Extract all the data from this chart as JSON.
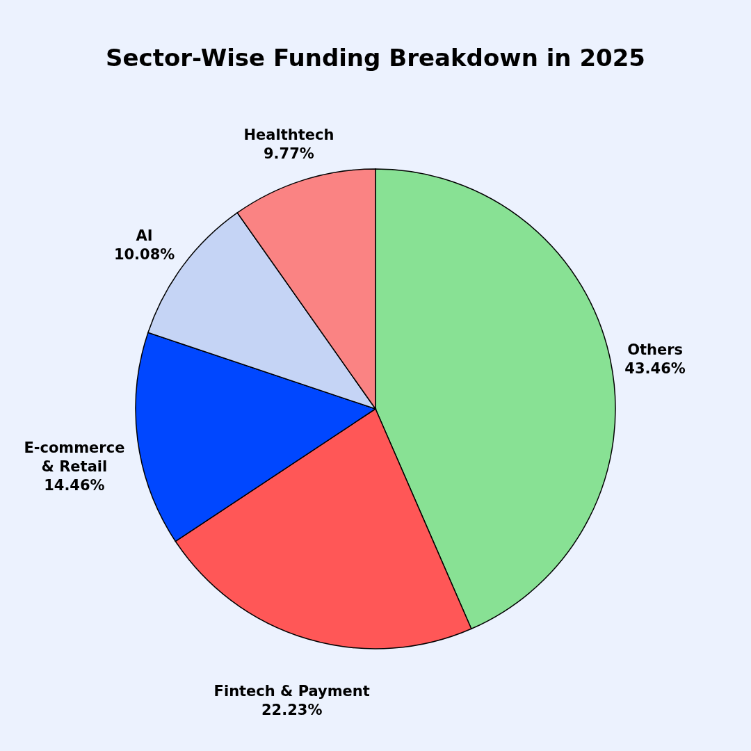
{
  "chart_data": {
    "type": "pie",
    "title": "Sector-Wise Funding Breakdown in 2025",
    "categories": [
      "Others",
      "Fintech & Payment",
      "E-commerce & Retail",
      "AI",
      "Healthtech"
    ],
    "values": [
      43.46,
      22.23,
      14.46,
      10.08,
      9.77
    ],
    "value_labels": [
      "43.46%",
      "22.23%",
      "14.46%",
      "10.08%",
      "9.77%"
    ],
    "colors": [
      "#88e194",
      "#ff5757",
      "#0047ff",
      "#c5d4f5",
      "#fa8383"
    ]
  }
}
